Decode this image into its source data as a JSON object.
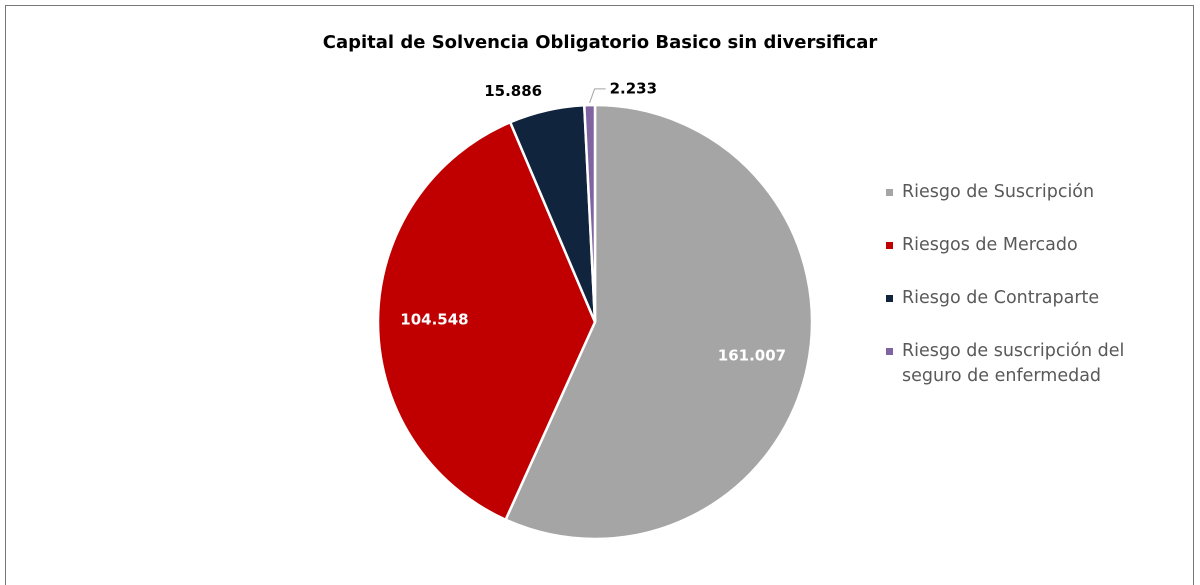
{
  "chart_data": {
    "type": "pie",
    "title": "Capital de Solvencia Obligatorio Basico sin diversificar",
    "categories": [
      "Riesgo de Suscripción",
      "Riesgos de Mercado",
      "Riesgo de Contraparte",
      "Riesgo de suscripción del seguro de enfermedad"
    ],
    "values": [
      161007,
      104548,
      15886,
      2233
    ],
    "value_labels": [
      "161.007",
      "104.548",
      "15.886",
      "2.233"
    ],
    "colors": [
      "#a5a5a5",
      "#c00000",
      "#10243e",
      "#8064a2"
    ],
    "legend": "right"
  }
}
